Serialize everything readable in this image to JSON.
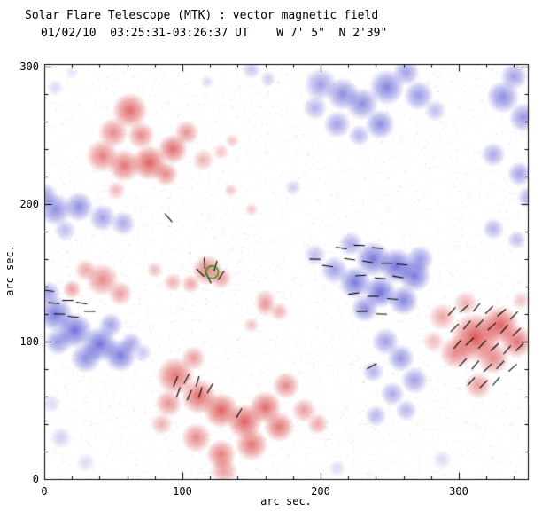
{
  "chart_data": {
    "type": "heatmap",
    "title": "Solar Flare Telescope (MTK) : vector magnetic field",
    "subtitle": "01/02/10  03:25:31-03:26:37 UT    W 7' 5\"  N 2'39\"",
    "xlabel": "arc sec.",
    "ylabel": "arc sec.",
    "xlim": [
      0,
      350
    ],
    "ylim": [
      0,
      302
    ],
    "x_ticks": [
      0,
      100,
      200,
      300
    ],
    "y_ticks": [
      0,
      100,
      200,
      300
    ],
    "minor_tick_step": 20,
    "colors": {
      "positive_polarity": "#d83a3a",
      "negative_polarity": "#4242ce",
      "vector": "#000000",
      "marker": "#00a000",
      "axis": "#000000",
      "background": "#ffffff"
    },
    "marker_circle": {
      "x": 121.5,
      "y": 150.5,
      "r": 4.5
    },
    "blob_format": "[x_arcsec, y_arcsec, radius_arcsec, intensity]",
    "positive_blobs": [
      [
        62,
        268,
        13,
        0.75
      ],
      [
        50,
        252,
        11,
        0.6
      ],
      [
        42,
        235,
        12,
        0.65
      ],
      [
        58,
        228,
        12,
        0.7
      ],
      [
        76,
        230,
        13,
        0.8
      ],
      [
        93,
        240,
        11,
        0.75
      ],
      [
        103,
        252,
        9,
        0.55
      ],
      [
        88,
        222,
        9,
        0.6
      ],
      [
        70,
        250,
        10,
        0.6
      ],
      [
        115,
        232,
        8,
        0.4
      ],
      [
        128,
        238,
        6,
        0.3
      ],
      [
        136,
        246,
        5,
        0.3
      ],
      [
        52,
        210,
        7,
        0.35
      ],
      [
        118,
        152,
        11,
        0.65
      ],
      [
        128,
        146,
        8,
        0.5
      ],
      [
        106,
        142,
        7,
        0.45
      ],
      [
        93,
        143,
        7,
        0.4
      ],
      [
        80,
        152,
        6,
        0.35
      ],
      [
        42,
        145,
        12,
        0.6
      ],
      [
        55,
        135,
        9,
        0.5
      ],
      [
        30,
        152,
        8,
        0.45
      ],
      [
        20,
        138,
        7,
        0.5
      ],
      [
        135,
        210,
        5,
        0.3
      ],
      [
        150,
        196,
        5,
        0.3
      ],
      [
        160,
        130,
        8,
        0.4
      ],
      [
        170,
        122,
        7,
        0.4
      ],
      [
        160,
        125,
        7,
        0.35
      ],
      [
        150,
        112,
        6,
        0.3
      ],
      [
        95,
        75,
        14,
        0.7
      ],
      [
        112,
        60,
        13,
        0.75
      ],
      [
        128,
        50,
        13,
        0.8
      ],
      [
        145,
        42,
        13,
        0.8
      ],
      [
        160,
        52,
        12,
        0.75
      ],
      [
        170,
        38,
        11,
        0.7
      ],
      [
        150,
        25,
        12,
        0.7
      ],
      [
        128,
        18,
        11,
        0.65
      ],
      [
        110,
        30,
        11,
        0.6
      ],
      [
        90,
        55,
        10,
        0.55
      ],
      [
        175,
        68,
        10,
        0.6
      ],
      [
        188,
        50,
        9,
        0.5
      ],
      [
        198,
        40,
        8,
        0.45
      ],
      [
        130,
        6,
        10,
        0.5
      ],
      [
        85,
        40,
        8,
        0.4
      ],
      [
        108,
        88,
        9,
        0.5
      ],
      [
        312,
        103,
        18,
        0.85
      ],
      [
        330,
        112,
        14,
        0.8
      ],
      [
        298,
        92,
        12,
        0.6
      ],
      [
        325,
        88,
        12,
        0.6
      ],
      [
        342,
        100,
        12,
        0.7
      ],
      [
        288,
        118,
        10,
        0.45
      ],
      [
        305,
        128,
        9,
        0.4
      ],
      [
        282,
        100,
        8,
        0.35
      ],
      [
        314,
        68,
        10,
        0.5
      ],
      [
        345,
        130,
        7,
        0.3
      ]
    ],
    "negative_blobs": [
      [
        150,
        298,
        7,
        0.3
      ],
      [
        162,
        291,
        6,
        0.25
      ],
      [
        118,
        289,
        5,
        0.2
      ],
      [
        200,
        287,
        12,
        0.5
      ],
      [
        216,
        280,
        12,
        0.6
      ],
      [
        230,
        273,
        12,
        0.6
      ],
      [
        248,
        285,
        13,
        0.65
      ],
      [
        262,
        296,
        10,
        0.5
      ],
      [
        271,
        279,
        11,
        0.55
      ],
      [
        243,
        258,
        11,
        0.6
      ],
      [
        212,
        258,
        10,
        0.5
      ],
      [
        228,
        250,
        8,
        0.4
      ],
      [
        196,
        270,
        9,
        0.4
      ],
      [
        283,
        268,
        8,
        0.35
      ],
      [
        332,
        278,
        12,
        0.6
      ],
      [
        347,
        263,
        11,
        0.55
      ],
      [
        340,
        293,
        10,
        0.5
      ],
      [
        325,
        236,
        9,
        0.45
      ],
      [
        344,
        222,
        9,
        0.5
      ],
      [
        350,
        205,
        8,
        0.4
      ],
      [
        8,
        196,
        12,
        0.6
      ],
      [
        25,
        198,
        11,
        0.6
      ],
      [
        42,
        190,
        10,
        0.5
      ],
      [
        57,
        186,
        9,
        0.45
      ],
      [
        0,
        206,
        10,
        0.5
      ],
      [
        15,
        181,
        8,
        0.35
      ],
      [
        8,
        120,
        13,
        0.7
      ],
      [
        22,
        108,
        13,
        0.75
      ],
      [
        40,
        98,
        13,
        0.75
      ],
      [
        55,
        90,
        12,
        0.7
      ],
      [
        30,
        88,
        11,
        0.6
      ],
      [
        10,
        100,
        10,
        0.55
      ],
      [
        3,
        135,
        9,
        0.5
      ],
      [
        48,
        112,
        9,
        0.5
      ],
      [
        63,
        99,
        8,
        0.45
      ],
      [
        71,
        92,
        7,
        0.3
      ],
      [
        238,
        160,
        13,
        0.7
      ],
      [
        255,
        155,
        13,
        0.75
      ],
      [
        268,
        148,
        12,
        0.7
      ],
      [
        225,
        143,
        12,
        0.7
      ],
      [
        243,
        136,
        12,
        0.75
      ],
      [
        260,
        130,
        11,
        0.65
      ],
      [
        232,
        124,
        10,
        0.6
      ],
      [
        272,
        160,
        10,
        0.55
      ],
      [
        210,
        152,
        10,
        0.5
      ],
      [
        196,
        163,
        8,
        0.35
      ],
      [
        222,
        171,
        9,
        0.45
      ],
      [
        247,
        100,
        10,
        0.5
      ],
      [
        258,
        88,
        10,
        0.55
      ],
      [
        268,
        72,
        10,
        0.5
      ],
      [
        252,
        62,
        9,
        0.45
      ],
      [
        240,
        46,
        8,
        0.4
      ],
      [
        262,
        50,
        8,
        0.4
      ],
      [
        238,
        78,
        8,
        0.4
      ],
      [
        325,
        182,
        8,
        0.4
      ],
      [
        342,
        174,
        7,
        0.35
      ],
      [
        12,
        30,
        8,
        0.25
      ],
      [
        5,
        55,
        7,
        0.2
      ],
      [
        30,
        12,
        7,
        0.2
      ],
      [
        288,
        14,
        7,
        0.2
      ],
      [
        212,
        8,
        6,
        0.2
      ],
      [
        8,
        285,
        6,
        0.2
      ],
      [
        20,
        296,
        5,
        0.15
      ],
      [
        180,
        212,
        6,
        0.25
      ]
    ],
    "vector_format": "[x_arcsec, y_arcsec, angle_deg]",
    "vector_length_arcsec": 8,
    "vectors": [
      [
        215,
        168,
        170
      ],
      [
        228,
        170,
        178
      ],
      [
        241,
        168,
        175
      ],
      [
        221,
        160,
        172
      ],
      [
        234,
        158,
        170
      ],
      [
        248,
        157,
        180
      ],
      [
        259,
        156,
        175
      ],
      [
        229,
        148,
        183
      ],
      [
        243,
        146,
        175
      ],
      [
        256,
        147,
        170
      ],
      [
        224,
        135,
        188
      ],
      [
        238,
        133,
        180
      ],
      [
        252,
        131,
        175
      ],
      [
        230,
        122,
        183
      ],
      [
        244,
        120,
        178
      ],
      [
        196,
        160,
        178
      ],
      [
        205,
        155,
        172
      ],
      [
        295,
        122,
        48
      ],
      [
        304,
        124,
        42
      ],
      [
        313,
        125,
        50
      ],
      [
        322,
        123,
        45
      ],
      [
        331,
        121,
        40
      ],
      [
        340,
        119,
        47
      ],
      [
        297,
        110,
        44
      ],
      [
        306,
        112,
        50
      ],
      [
        315,
        113,
        46
      ],
      [
        324,
        111,
        42
      ],
      [
        333,
        109,
        48
      ],
      [
        342,
        107,
        45
      ],
      [
        299,
        98,
        50
      ],
      [
        308,
        100,
        44
      ],
      [
        317,
        98,
        47
      ],
      [
        326,
        96,
        43
      ],
      [
        335,
        94,
        49
      ],
      [
        344,
        96,
        45
      ],
      [
        303,
        85,
        46
      ],
      [
        312,
        83,
        50
      ],
      [
        321,
        81,
        44
      ],
      [
        330,
        83,
        47
      ],
      [
        339,
        81,
        42
      ],
      [
        309,
        71,
        48
      ],
      [
        318,
        69,
        45
      ],
      [
        327,
        71,
        50
      ],
      [
        95,
        71,
        68
      ],
      [
        103,
        73,
        62
      ],
      [
        111,
        71,
        74
      ],
      [
        97,
        63,
        70
      ],
      [
        105,
        61,
        66
      ],
      [
        113,
        63,
        72
      ],
      [
        120,
        66,
        60
      ],
      [
        116,
        157,
        95
      ],
      [
        124,
        155,
        75
      ],
      [
        119,
        146,
        115
      ],
      [
        128,
        148,
        55
      ],
      [
        113,
        150,
        135
      ],
      [
        7,
        128,
        175
      ],
      [
        17,
        130,
        180
      ],
      [
        27,
        128,
        170
      ],
      [
        11,
        120,
        178
      ],
      [
        21,
        118,
        174
      ],
      [
        33,
        122,
        180
      ],
      [
        3,
        137,
        172
      ],
      [
        90,
        190,
        130
      ],
      [
        141,
        48,
        60
      ],
      [
        237,
        82,
        30
      ]
    ],
    "noise": {
      "count": 9000,
      "max_alpha": 0.2,
      "seed": 42
    }
  }
}
